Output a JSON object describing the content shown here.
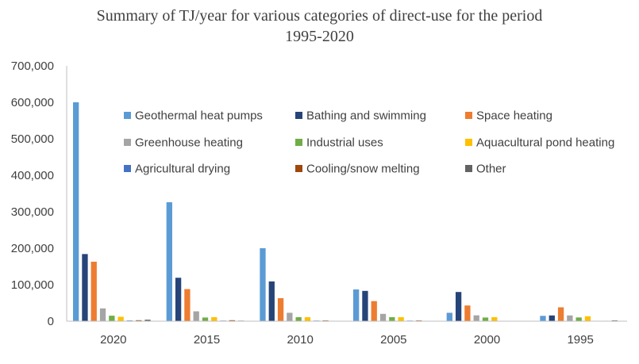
{
  "title_line1": "Summary of TJ/year for various categories of direct-use for the period",
  "title_line2": "1995-2020",
  "chart_data": {
    "type": "bar",
    "title": "Summary of TJ/year for various categories of direct-use for the period 1995-2020",
    "xlabel": "",
    "ylabel": "",
    "ylim": [
      0,
      700000
    ],
    "yticks": [
      "0",
      "100,000",
      "200,000",
      "300,000",
      "400,000",
      "500,000",
      "600,000",
      "700,000"
    ],
    "grid": false,
    "legend_position": "top-right",
    "categories": [
      "2020",
      "2015",
      "2010",
      "2005",
      "2000",
      "1995"
    ],
    "series": [
      {
        "name": "Geothermal heat pumps",
        "color": "#5B9BD5",
        "values": [
          600000,
          326000,
          200000,
          87000,
          23000,
          14600
        ]
      },
      {
        "name": "Bathing and swimming",
        "color": "#264478",
        "values": [
          184000,
          119000,
          109000,
          83000,
          80000,
          15700
        ]
      },
      {
        "name": "Space heating",
        "color": "#ED7D31",
        "values": [
          163000,
          88000,
          63000,
          55000,
          43000,
          38000
        ]
      },
      {
        "name": "Greenhouse heating",
        "color": "#A5A5A5",
        "values": [
          35000,
          27000,
          23000,
          20000,
          16000,
          15700
        ]
      },
      {
        "name": "Industrial uses",
        "color": "#70AD47",
        "values": [
          15000,
          10000,
          11000,
          11000,
          10000,
          10200
        ]
      },
      {
        "name": "Aquacultural pond heating",
        "color": "#FFC000",
        "values": [
          12000,
          11000,
          11000,
          11000,
          11000,
          13500
        ]
      },
      {
        "name": "Agricultural drying",
        "color": "#4472C4",
        "values": [
          2000,
          1600,
          1600,
          1600,
          1000,
          1100
        ]
      },
      {
        "name": "Cooling/snow melting",
        "color": "#9E480E",
        "values": [
          2600,
          2600,
          2000,
          2000,
          1000,
          1100
        ]
      },
      {
        "name": "Other",
        "color": "#636363",
        "values": [
          4000,
          1500,
          1000,
          1000,
          500,
          2200
        ]
      }
    ]
  }
}
